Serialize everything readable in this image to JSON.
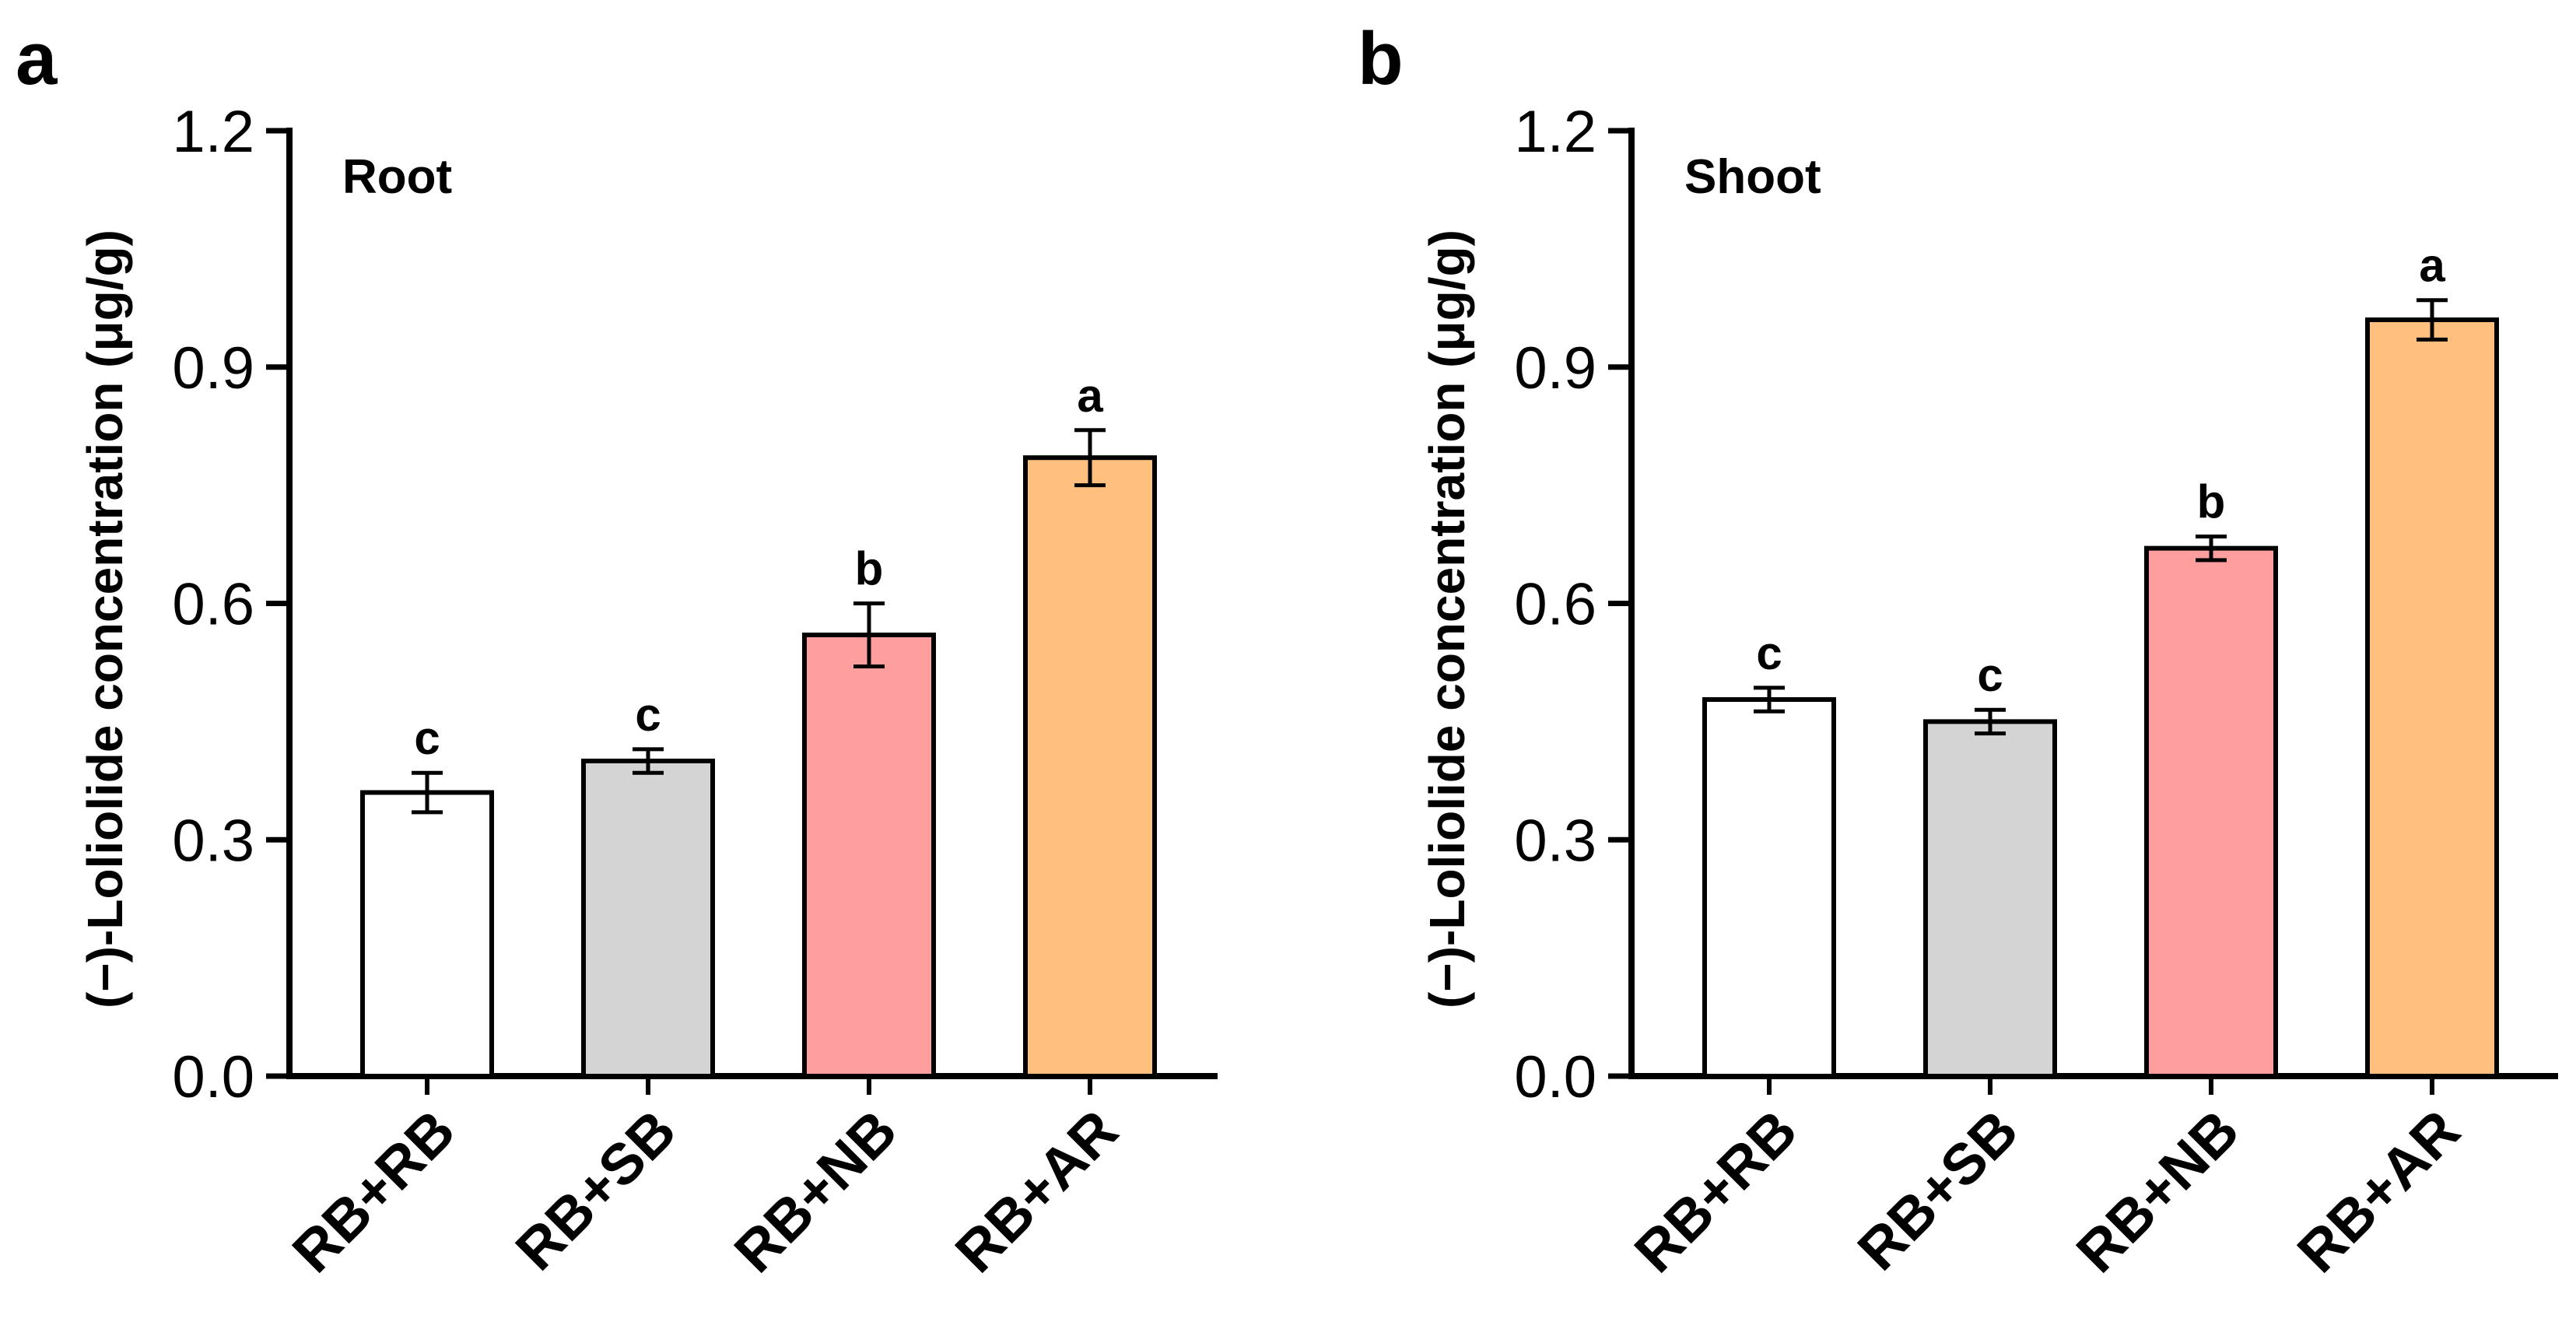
{
  "chart_data": [
    {
      "type": "bar",
      "panel": "a",
      "title": "Root",
      "ylabel": "(−)-Loliolide concentration (μg/g)",
      "xlabel": "",
      "categories": [
        "RB+RB",
        "RB+SB",
        "RB+NB",
        "RB+AR"
      ],
      "values": [
        0.36,
        0.4,
        0.56,
        0.785
      ],
      "errors": [
        0.025,
        0.015,
        0.04,
        0.035
      ],
      "significance": [
        "c",
        "c",
        "b",
        "a"
      ],
      "colors": [
        "#ffffff",
        "#d4d4d4",
        "#ff9e9e",
        "#ffc07f"
      ],
      "ylim": [
        0,
        1.2
      ],
      "yticks": [
        "0.0",
        "0.3",
        "0.6",
        "0.9",
        "1.2"
      ],
      "ytick_values": [
        0,
        0.3,
        0.6,
        0.9,
        1.2
      ],
      "grid": false
    },
    {
      "type": "bar",
      "panel": "b",
      "title": "Shoot",
      "ylabel": "(−)-Loliolide concentration (μg/g)",
      "xlabel": "",
      "categories": [
        "RB+RB",
        "RB+SB",
        "RB+NB",
        "RB+AR"
      ],
      "values": [
        0.478,
        0.45,
        0.67,
        0.96
      ],
      "errors": [
        0.015,
        0.015,
        0.015,
        0.025
      ],
      "significance": [
        "c",
        "c",
        "b",
        "a"
      ],
      "colors": [
        "#ffffff",
        "#d4d4d4",
        "#ff9e9e",
        "#ffc07f"
      ],
      "ylim": [
        0,
        1.2
      ],
      "yticks": [
        "0.0",
        "0.3",
        "0.6",
        "0.9",
        "1.2"
      ],
      "ytick_values": [
        0,
        0.3,
        0.6,
        0.9,
        1.2
      ],
      "grid": false
    }
  ]
}
